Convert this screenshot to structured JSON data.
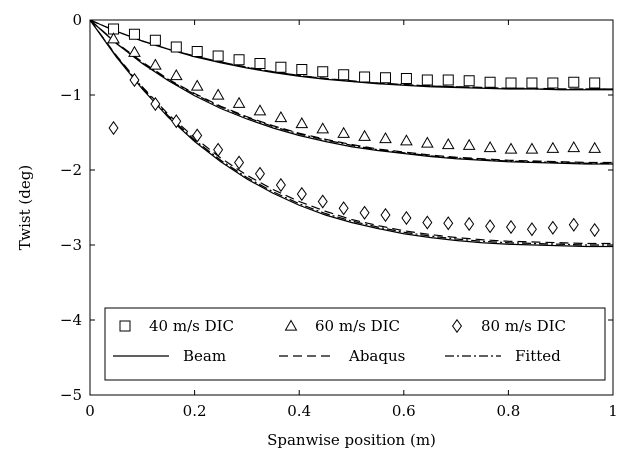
{
  "chart_data": {
    "type": "line",
    "xlabel": "Spanwise position (m)",
    "ylabel": "Twist (deg)",
    "xlim": [
      0,
      1
    ],
    "ylim": [
      -5,
      0
    ],
    "xticks": [
      0,
      0.2,
      0.4,
      0.6,
      0.8,
      1
    ],
    "xtick_labels": [
      "0",
      "0.2",
      "0.4",
      "0.6",
      "0.8",
      "1"
    ],
    "yticks": [
      0,
      -1,
      -2,
      -3,
      -4,
      -5
    ],
    "ytick_labels": [
      "0",
      "−1",
      "−2",
      "−3",
      "−4",
      "−5"
    ],
    "grid": false,
    "legend": {
      "position": "bottom"
    },
    "colors": {
      "ink": "#000000",
      "background": "#ffffff"
    },
    "series": [
      {
        "name": "40 m/s DIC",
        "kind": "marker",
        "marker": "square",
        "x": [
          0.045,
          0.085,
          0.125,
          0.165,
          0.205,
          0.245,
          0.285,
          0.325,
          0.365,
          0.405,
          0.445,
          0.485,
          0.525,
          0.565,
          0.605,
          0.645,
          0.685,
          0.725,
          0.765,
          0.805,
          0.845,
          0.885,
          0.925,
          0.965
        ],
        "y": [
          -0.12,
          -0.19,
          -0.27,
          -0.36,
          -0.42,
          -0.48,
          -0.53,
          -0.58,
          -0.63,
          -0.66,
          -0.69,
          -0.73,
          -0.76,
          -0.77,
          -0.78,
          -0.8,
          -0.8,
          -0.81,
          -0.83,
          -0.84,
          -0.84,
          -0.84,
          -0.83,
          -0.84
        ]
      },
      {
        "name": "60 m/s DIC",
        "kind": "marker",
        "marker": "triangle",
        "x": [
          0.045,
          0.085,
          0.125,
          0.165,
          0.205,
          0.245,
          0.285,
          0.325,
          0.365,
          0.405,
          0.445,
          0.485,
          0.525,
          0.565,
          0.605,
          0.645,
          0.685,
          0.725,
          0.765,
          0.805,
          0.845,
          0.885,
          0.925,
          0.965
        ],
        "y": [
          -0.25,
          -0.43,
          -0.6,
          -0.74,
          -0.88,
          -1.0,
          -1.11,
          -1.21,
          -1.3,
          -1.38,
          -1.45,
          -1.51,
          -1.55,
          -1.58,
          -1.61,
          -1.64,
          -1.66,
          -1.67,
          -1.7,
          -1.72,
          -1.72,
          -1.71,
          -1.7,
          -1.71
        ]
      },
      {
        "name": "80 m/s DIC",
        "kind": "marker",
        "marker": "diamond",
        "x": [
          0.045,
          0.085,
          0.125,
          0.165,
          0.205,
          0.245,
          0.285,
          0.325,
          0.365,
          0.405,
          0.445,
          0.485,
          0.525,
          0.565,
          0.605,
          0.645,
          0.685,
          0.725,
          0.765,
          0.805,
          0.845,
          0.885,
          0.925,
          0.965
        ],
        "y": [
          -1.44,
          -0.8,
          -1.12,
          -1.35,
          -1.54,
          -1.73,
          -1.9,
          -2.05,
          -2.2,
          -2.32,
          -2.42,
          -2.51,
          -2.57,
          -2.6,
          -2.64,
          -2.7,
          -2.71,
          -2.72,
          -2.75,
          -2.76,
          -2.79,
          -2.77,
          -2.73,
          -2.8
        ]
      },
      {
        "name": "Beam",
        "kind": "line",
        "dash": "solid",
        "curves": [
          {
            "x": [
              0,
              0.05,
              0.1,
              0.15,
              0.2,
              0.25,
              0.3,
              0.35,
              0.4,
              0.45,
              0.5,
              0.55,
              0.6,
              0.65,
              0.7,
              0.75,
              0.8,
              0.85,
              0.9,
              0.95,
              1
            ],
            "y": [
              0,
              -0.15,
              -0.28,
              -0.39,
              -0.49,
              -0.57,
              -0.64,
              -0.7,
              -0.75,
              -0.79,
              -0.82,
              -0.85,
              -0.87,
              -0.89,
              -0.9,
              -0.91,
              -0.92,
              -0.92,
              -0.93,
              -0.93,
              -0.93
            ]
          },
          {
            "x": [
              0,
              0.05,
              0.1,
              0.15,
              0.2,
              0.25,
              0.3,
              0.35,
              0.4,
              0.45,
              0.5,
              0.55,
              0.6,
              0.65,
              0.7,
              0.75,
              0.8,
              0.85,
              0.9,
              0.95,
              1
            ],
            "y": [
              0,
              -0.31,
              -0.58,
              -0.81,
              -1.01,
              -1.18,
              -1.32,
              -1.44,
              -1.54,
              -1.62,
              -1.69,
              -1.74,
              -1.78,
              -1.82,
              -1.85,
              -1.87,
              -1.89,
              -1.9,
              -1.91,
              -1.92,
              -1.92
            ]
          },
          {
            "x": [
              0,
              0.05,
              0.1,
              0.15,
              0.2,
              0.25,
              0.3,
              0.35,
              0.4,
              0.45,
              0.5,
              0.55,
              0.6,
              0.65,
              0.7,
              0.75,
              0.8,
              0.85,
              0.9,
              0.95,
              1
            ],
            "y": [
              0,
              -0.49,
              -0.92,
              -1.3,
              -1.62,
              -1.89,
              -2.12,
              -2.31,
              -2.47,
              -2.6,
              -2.7,
              -2.78,
              -2.85,
              -2.9,
              -2.94,
              -2.97,
              -2.99,
              -3.0,
              -3.01,
              -3.02,
              -3.02
            ]
          }
        ]
      },
      {
        "name": "Abaqus",
        "kind": "line",
        "dash": "dashed",
        "curves": [
          {
            "x": [
              0,
              0.05,
              0.1,
              0.15,
              0.2,
              0.25,
              0.3,
              0.35,
              0.4,
              0.45,
              0.5,
              0.55,
              0.6,
              0.65,
              0.7,
              0.75,
              0.8,
              0.85,
              0.9,
              0.95,
              1
            ],
            "y": [
              0,
              -0.15,
              -0.28,
              -0.39,
              -0.48,
              -0.56,
              -0.63,
              -0.69,
              -0.74,
              -0.78,
              -0.81,
              -0.84,
              -0.86,
              -0.88,
              -0.89,
              -0.9,
              -0.91,
              -0.91,
              -0.92,
              -0.92,
              -0.92
            ]
          },
          {
            "x": [
              0,
              0.05,
              0.1,
              0.15,
              0.2,
              0.25,
              0.3,
              0.35,
              0.4,
              0.45,
              0.5,
              0.55,
              0.6,
              0.65,
              0.7,
              0.75,
              0.8,
              0.85,
              0.9,
              0.95,
              1
            ],
            "y": [
              0,
              -0.3,
              -0.56,
              -0.79,
              -0.98,
              -1.15,
              -1.29,
              -1.41,
              -1.51,
              -1.59,
              -1.66,
              -1.72,
              -1.76,
              -1.8,
              -1.83,
              -1.85,
              -1.87,
              -1.88,
              -1.89,
              -1.9,
              -1.9
            ]
          },
          {
            "x": [
              0,
              0.05,
              0.1,
              0.15,
              0.2,
              0.25,
              0.3,
              0.35,
              0.4,
              0.45,
              0.5,
              0.55,
              0.6,
              0.65,
              0.7,
              0.75,
              0.8,
              0.85,
              0.9,
              0.95,
              1
            ],
            "y": [
              0,
              -0.47,
              -0.89,
              -1.26,
              -1.57,
              -1.84,
              -2.07,
              -2.26,
              -2.42,
              -2.55,
              -2.66,
              -2.74,
              -2.81,
              -2.86,
              -2.9,
              -2.93,
              -2.95,
              -2.96,
              -2.97,
              -2.98,
              -2.98
            ]
          }
        ]
      },
      {
        "name": "Fitted",
        "kind": "line",
        "dash": "dashdot",
        "curves": [
          {
            "x": [
              0,
              0.05,
              0.1,
              0.15,
              0.2,
              0.25,
              0.3,
              0.35,
              0.4,
              0.45,
              0.5,
              0.55,
              0.6,
              0.65,
              0.7,
              0.75,
              0.8,
              0.85,
              0.9,
              0.95,
              1
            ],
            "y": [
              0,
              -0.15,
              -0.28,
              -0.39,
              -0.48,
              -0.56,
              -0.63,
              -0.69,
              -0.74,
              -0.78,
              -0.82,
              -0.84,
              -0.86,
              -0.88,
              -0.89,
              -0.9,
              -0.91,
              -0.92,
              -0.92,
              -0.92,
              -0.92
            ]
          },
          {
            "x": [
              0,
              0.05,
              0.1,
              0.15,
              0.2,
              0.25,
              0.3,
              0.35,
              0.4,
              0.45,
              0.5,
              0.55,
              0.6,
              0.65,
              0.7,
              0.75,
              0.8,
              0.85,
              0.9,
              0.95,
              1
            ],
            "y": [
              0,
              -0.31,
              -0.57,
              -0.8,
              -0.99,
              -1.16,
              -1.3,
              -1.42,
              -1.52,
              -1.6,
              -1.67,
              -1.73,
              -1.77,
              -1.81,
              -1.84,
              -1.86,
              -1.88,
              -1.89,
              -1.9,
              -1.91,
              -1.91
            ]
          },
          {
            "x": [
              0,
              0.05,
              0.1,
              0.15,
              0.2,
              0.25,
              0.3,
              0.35,
              0.4,
              0.45,
              0.5,
              0.55,
              0.6,
              0.65,
              0.7,
              0.75,
              0.8,
              0.85,
              0.9,
              0.95,
              1
            ],
            "y": [
              0,
              -0.48,
              -0.9,
              -1.28,
              -1.6,
              -1.87,
              -2.1,
              -2.29,
              -2.45,
              -2.58,
              -2.68,
              -2.76,
              -2.83,
              -2.88,
              -2.92,
              -2.95,
              -2.97,
              -2.98,
              -2.99,
              -3.0,
              -3.0
            ]
          }
        ]
      }
    ]
  }
}
